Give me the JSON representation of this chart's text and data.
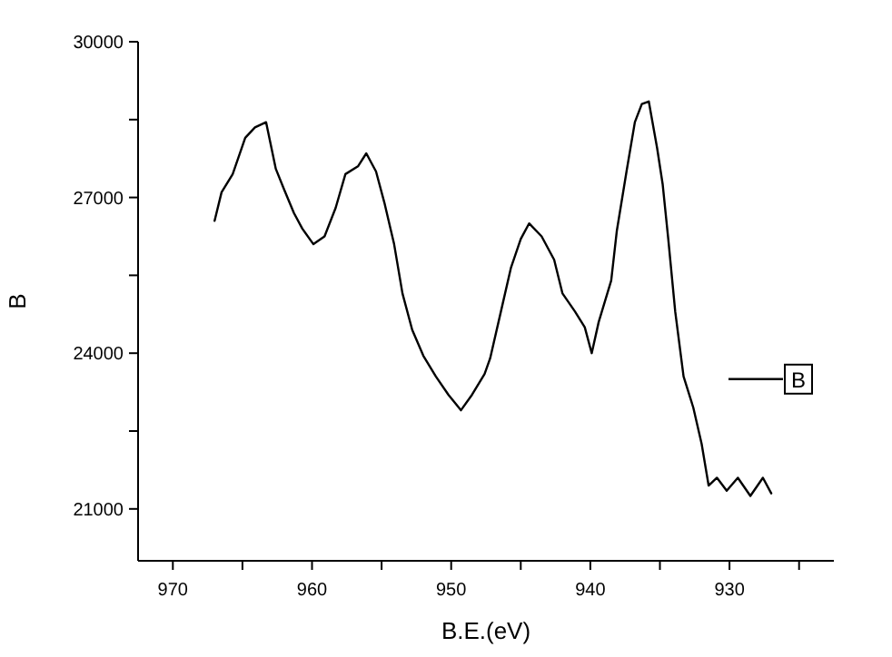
{
  "chart_data": {
    "type": "line",
    "xlabel": "B.E.(eV)",
    "ylabel": "B",
    "xlim": [
      972.5,
      922.5
    ],
    "xticks": [
      970,
      {
        "value": 965,
        "label": null
      },
      960,
      {
        "value": 955,
        "label": null
      },
      950,
      {
        "value": 945,
        "label": null
      },
      940,
      {
        "value": 935,
        "label": null
      },
      930,
      {
        "value": 925,
        "label": null
      }
    ],
    "ylim": [
      20000,
      30000
    ],
    "yticks": [
      21000,
      {
        "value": 22500,
        "label": null
      },
      24000,
      {
        "value": 25500,
        "label": null
      },
      27000,
      {
        "value": 28500,
        "label": null
      },
      30000
    ],
    "grid": false,
    "legend": "right",
    "marker": "none",
    "line_style": "solid",
    "series": [
      {
        "name": "B",
        "color": "#000000",
        "x": [
          967.0,
          966.5,
          965.7,
          964.8,
          964.1,
          963.3,
          962.6,
          962.0,
          961.3,
          960.7,
          959.9,
          959.1,
          958.3,
          957.6,
          956.7,
          956.1,
          955.4,
          954.8,
          954.1,
          953.5,
          952.8,
          952.0,
          951.1,
          950.2,
          949.3,
          948.5,
          947.6,
          947.2,
          946.3,
          945.7,
          945.0,
          944.4,
          943.5,
          942.6,
          942.0,
          941.1,
          940.4,
          939.9,
          939.4,
          938.5,
          938.1,
          937.4,
          936.8,
          936.3,
          935.8,
          935.2,
          934.8,
          934.4,
          933.9,
          933.3,
          932.6,
          932.0,
          931.5,
          930.9,
          930.2,
          929.4,
          928.5,
          927.6,
          927.0
        ],
        "values": [
          26550,
          27100,
          27450,
          28150,
          28350,
          28450,
          27550,
          27150,
          26700,
          26400,
          26100,
          26250,
          26800,
          27450,
          27600,
          27850,
          27500,
          26900,
          26100,
          25150,
          24450,
          23950,
          23550,
          23200,
          22900,
          23200,
          23600,
          23900,
          24950,
          25650,
          26200,
          26500,
          26250,
          25800,
          25150,
          24800,
          24500,
          24000,
          24600,
          25400,
          26350,
          27500,
          28450,
          28800,
          28850,
          27950,
          27250,
          26200,
          24800,
          23550,
          22950,
          22250,
          21450,
          21600,
          21350,
          21600,
          21250,
          21600,
          21300
        ]
      }
    ]
  }
}
